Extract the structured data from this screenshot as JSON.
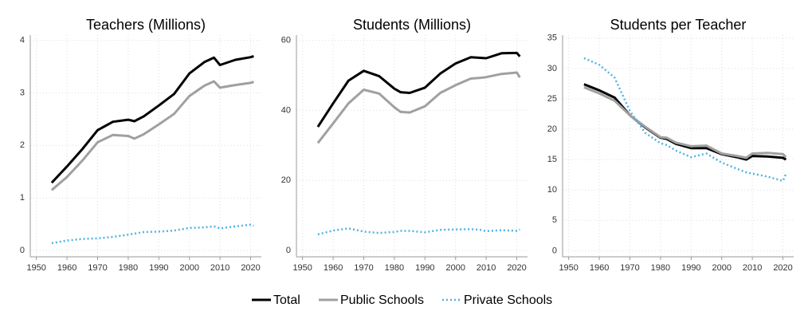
{
  "chart_data": [
    {
      "type": "line",
      "title": "Teachers (Millions)",
      "x": [
        1955,
        1960,
        1965,
        1970,
        1975,
        1980,
        1982,
        1985,
        1990,
        1995,
        2000,
        2005,
        2008,
        2010,
        2015,
        2020,
        2021
      ],
      "series": [
        {
          "name": "Total",
          "color": "#000000",
          "style": "solid",
          "values": [
            1.29,
            1.6,
            1.93,
            2.29,
            2.45,
            2.49,
            2.46,
            2.55,
            2.76,
            2.98,
            3.37,
            3.59,
            3.67,
            3.53,
            3.63,
            3.68,
            3.7
          ]
        },
        {
          "name": "Public Schools",
          "color": "#a0a0a0",
          "style": "solid",
          "values": [
            1.15,
            1.4,
            1.71,
            2.06,
            2.2,
            2.18,
            2.13,
            2.21,
            2.4,
            2.6,
            2.94,
            3.14,
            3.22,
            3.1,
            3.15,
            3.19,
            3.21
          ]
        },
        {
          "name": "Private Schools",
          "color": "#4fb3e6",
          "style": "dotted",
          "values": [
            0.14,
            0.19,
            0.22,
            0.23,
            0.26,
            0.3,
            0.32,
            0.35,
            0.36,
            0.38,
            0.43,
            0.44,
            0.46,
            0.42,
            0.46,
            0.49,
            0.47
          ]
        }
      ],
      "xlim": [
        1948,
        2023.5
      ],
      "xticks": [
        1950,
        1960,
        1970,
        1980,
        1990,
        2000,
        2010,
        2020
      ],
      "ylim": [
        -0.12,
        4.1
      ],
      "yticks": [
        0,
        1,
        2,
        3,
        4
      ],
      "grid": true,
      "legend": "bottom"
    },
    {
      "type": "line",
      "title": "Students (Millions)",
      "x": [
        1955,
        1960,
        1965,
        1970,
        1975,
        1980,
        1982,
        1985,
        1990,
        1995,
        2000,
        2005,
        2008,
        2010,
        2015,
        2020,
        2021
      ],
      "series": [
        {
          "name": "Total",
          "color": "#000000",
          "style": "solid",
          "values": [
            35.3,
            42.0,
            48.5,
            51.3,
            49.8,
            46.2,
            45.2,
            45.0,
            46.5,
            50.5,
            53.4,
            55.2,
            55.0,
            54.9,
            56.3,
            56.4,
            55.4
          ]
        },
        {
          "name": "Public Schools",
          "color": "#a0a0a0",
          "style": "solid",
          "values": [
            30.7,
            36.3,
            42.0,
            45.9,
            44.8,
            40.9,
            39.6,
            39.4,
            41.2,
            45.0,
            47.2,
            49.1,
            49.3,
            49.5,
            50.4,
            50.8,
            49.4
          ]
        },
        {
          "name": "Private Schools",
          "color": "#4fb3e6",
          "style": "dotted",
          "values": [
            4.6,
            5.7,
            6.3,
            5.4,
            5.0,
            5.3,
            5.6,
            5.6,
            5.2,
            5.9,
            6.0,
            6.1,
            5.9,
            5.5,
            5.8,
            5.6,
            6.0
          ]
        }
      ],
      "xlim": [
        1948,
        2023.5
      ],
      "xticks": [
        1950,
        1960,
        1970,
        1980,
        1990,
        2000,
        2010,
        2020
      ],
      "ylim": [
        -1.8,
        61.5
      ],
      "yticks": [
        0,
        20,
        40,
        60
      ],
      "grid": true
    },
    {
      "type": "line",
      "title": "Students per Teacher",
      "x": [
        1955,
        1960,
        1965,
        1970,
        1975,
        1980,
        1982,
        1985,
        1990,
        1995,
        2000,
        2005,
        2008,
        2010,
        2015,
        2020,
        2021
      ],
      "series": [
        {
          "name": "Total",
          "color": "#000000",
          "style": "solid",
          "values": [
            27.4,
            26.4,
            25.2,
            22.3,
            20.3,
            18.6,
            18.4,
            17.6,
            16.9,
            16.9,
            15.9,
            15.4,
            15.0,
            15.6,
            15.5,
            15.3,
            15.0
          ]
        },
        {
          "name": "Public Schools",
          "color": "#a0a0a0",
          "style": "solid",
          "values": [
            26.9,
            25.9,
            24.7,
            22.3,
            20.4,
            18.7,
            18.6,
            17.8,
            17.2,
            17.3,
            16.0,
            15.6,
            15.3,
            16.0,
            16.1,
            15.9,
            15.4
          ]
        },
        {
          "name": "Private Schools",
          "color": "#4fb3e6",
          "style": "dotted",
          "values": [
            31.7,
            30.6,
            28.5,
            23.0,
            19.4,
            17.7,
            17.4,
            16.5,
            15.4,
            16.0,
            14.5,
            13.5,
            12.9,
            12.7,
            12.2,
            11.5,
            12.7
          ]
        }
      ],
      "xlim": [
        1948,
        2023.5
      ],
      "xticks": [
        1950,
        1960,
        1970,
        1980,
        1990,
        2000,
        2010,
        2020
      ],
      "ylim": [
        -1,
        35.5
      ],
      "yticks": [
        0,
        5,
        10,
        15,
        20,
        25,
        30,
        35
      ],
      "grid": true
    }
  ]
}
